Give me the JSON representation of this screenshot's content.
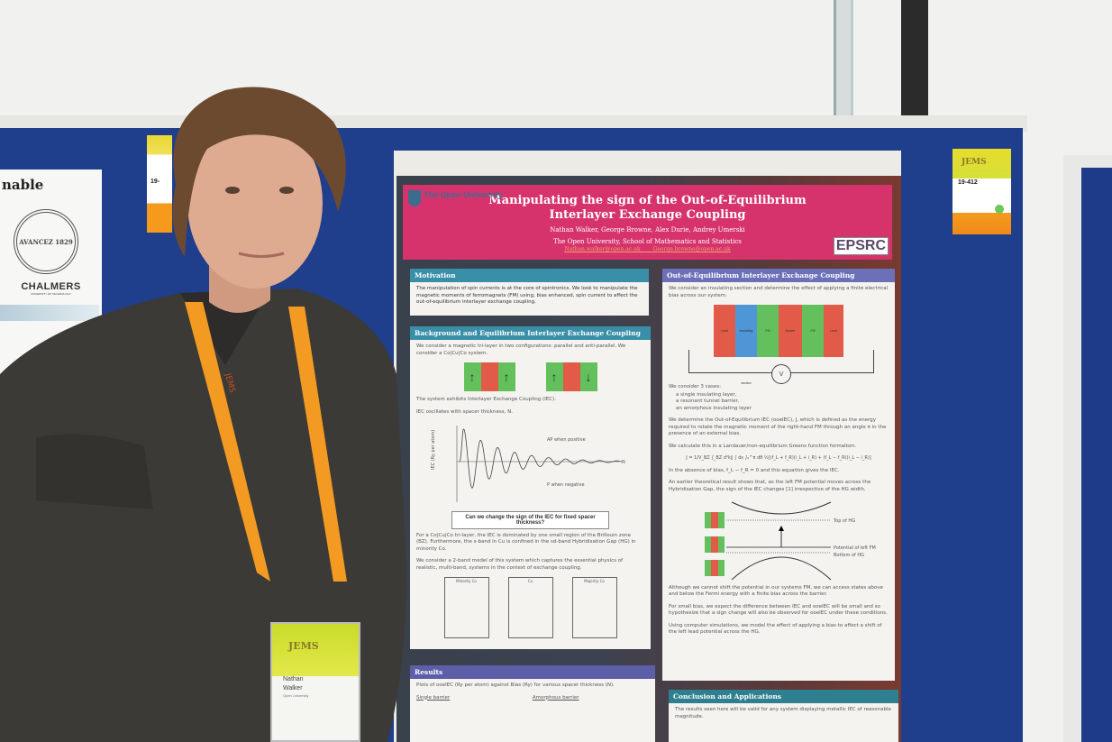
{
  "poster": {
    "institution_logo": "The Open University",
    "title": "Manipulating the sign of the Out-of-Equilibrium Interlayer Exchange Coupling",
    "authors": "Nathan Walker, George Browne, Alex Durie, Andrey Umerski",
    "affiliation": "The Open University, School of Mathematics and Statistics",
    "emails": "Nathan.walker@open.ac.uk   George.browne@open.ac.uk",
    "funder_logo": "EPSRC",
    "colors": {
      "header": "#d6336d",
      "teal": "#3a8fa8",
      "purple": "#6b70b8"
    },
    "motivation": {
      "heading": "Motivation",
      "text": "The manipulation of spin currents is at the core of spintronics. We look to manipulate the magnetic moments of ferromagnets (FM) using, bias enhanced, spin current to affect the out-of-equilibrium interlayer exchange coupling."
    },
    "background": {
      "heading": "Background and Equilibrium Interlayer Exchange Coupling",
      "p1": "We consider a magnetic tri-layer in two configurations: parallel and anti-parallel. We consider a Co|Cu|Co system.",
      "p2": "The system exhibits Interlayer Exchange Coupling (IEC).",
      "p3": "IEC oscillates with spacer thickness, N.",
      "plot_ylabel": "IEC (Ry per atom)",
      "plot_xlabel": "N",
      "plot_ap": "AP when positive",
      "plot_p": "P when negative",
      "question": "Can we change the sign of the IEC for fixed spacer thickness?",
      "p4": "For a Co|Cu|Co tri-layer, the IEC is dominated by one small region of the Brillouin zone (BZ). Furthermore, the s-band in Cu is confined in the sd-band Hybridisation Gap (HG) in minority Co.",
      "p5": "We consider a 2-band model of this system which captures the essential physics of realistic, multi-band, systems in the context of exchange coupling.",
      "band_labels": [
        "Minority Co",
        "Cu",
        "Majority Co"
      ]
    },
    "oeiec": {
      "heading": "Out-of-Equilibrium Interlayer Exchange Coupling",
      "p1": "We consider an insulating section and determine the effect of applying a finite electrical bias across our system.",
      "layers": [
        "Lead",
        "Insulating section",
        "FM",
        "Spacer",
        "FM",
        "Lead"
      ],
      "voltmeter": "V",
      "cases_intro": "We consider 3 cases:",
      "cases": [
        "a single insulating layer,",
        "a resonant tunnel barrier,",
        "an amorphous insulating layer"
      ],
      "p2": "We determine the Out-of-Equilibrium IEC (ooeIEC), J, which is defined as the energy required to rotate the magnetic moment of the right-hand FM through an angle π in the presence of an external bias.",
      "p3": "We calculate this in a Landauer/non-equilibrium Greens function formalism.",
      "equation": "J = 1/V_BZ ∫_BZ d²k∥ ∫ dε ∫₀^π dθ ½[(f_L + f_R)(i_L + i_R) + (f_L − f_R)(i_L − i_R)]",
      "p4": "In the absence of bias, f_L − f_R = 0 and this equation gives the IEC.",
      "p5": "An earlier theoretical result shows that, as the left FM potential moves across the Hybridisation Gap, the sign of the IEC changes [1] irrespective of the HG width.",
      "hg_labels": [
        "Top of HG",
        "Potential of left FM",
        "Bottom of HG"
      ],
      "p6": "Although we cannot shift the potential in our systems FM, we can access states above and below the Fermi energy with a finite bias across the barrier.",
      "p7": "For small bias, we expect the difference between IEC and ooeIEC will be small and so hypothesize that a sign change will also be observed for ooeIEC under these conditions.",
      "p8": "Using computer simulations, we model the effect of applying a bias to affect a shift of the left lead potential across the HG."
    },
    "results": {
      "heading": "Results",
      "text": "Plots of ooeIEC (Ry per atom) against Bias (Ry) for various spacer thickness (N).",
      "sub1": "Single barrier",
      "sub2": "Amorphous barrier"
    },
    "conclusion": {
      "heading": "Conclusion and Applications",
      "text": "The results seen here will be valid for any system displaying metallic IEC of reasonable magnitude."
    }
  },
  "left_poster": {
    "title_fragment": "nable",
    "logo_motto": "AVANCEZ 1829",
    "logo_name": "CHALMERS",
    "logo_sub": "UNIVERSITY OF TECHNOLOGY"
  },
  "left_tag": {
    "number": "19-"
  },
  "right_tag": {
    "logo": "JEMS",
    "number": "19-412"
  },
  "name_badge": {
    "logo": "JEMS",
    "first_name": "Nathan",
    "last_name": "Walker",
    "affiliation": "Open University"
  },
  "lanyard_text": "JEMS"
}
